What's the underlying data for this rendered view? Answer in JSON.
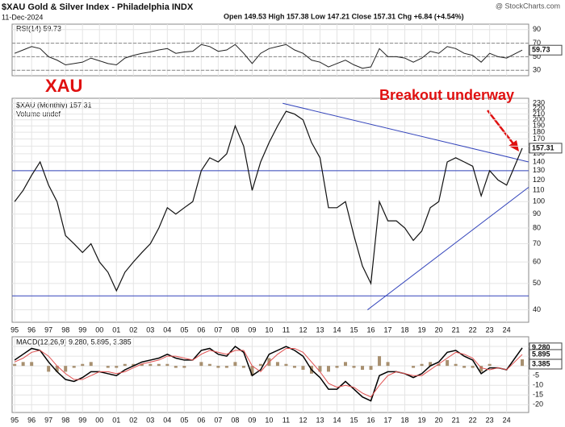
{
  "chart_data": {
    "type": "stock-panels",
    "title": "$XAU Gold & Silver Index - Philadelphia INDX",
    "date": "11-Dec-2024",
    "quote": "Open 149.53 High 157.38 Low 147.21 Close 157.31 Chg +6.84 (+4.54%)",
    "source": "@ StockCharts.com",
    "symbol_badge": "XAU",
    "annotation": "Breakout underway",
    "xlim": [
      1994.85,
      2025.3
    ],
    "xticks": [
      {
        "value": 1995,
        "label": "95"
      },
      {
        "value": 1996,
        "label": "96"
      },
      {
        "value": 1997,
        "label": "97"
      },
      {
        "value": 1998,
        "label": "98"
      },
      {
        "value": 1999,
        "label": "99"
      },
      {
        "value": 2000,
        "label": "00"
      },
      {
        "value": 2001,
        "label": "01"
      },
      {
        "value": 2002,
        "label": "02"
      },
      {
        "value": 2003,
        "label": "03"
      },
      {
        "value": 2004,
        "label": "04"
      },
      {
        "value": 2005,
        "label": "05"
      },
      {
        "value": 2006,
        "label": "06"
      },
      {
        "value": 2007,
        "label": "07"
      },
      {
        "value": 2008,
        "label": "08"
      },
      {
        "value": 2009,
        "label": "09"
      },
      {
        "value": 2010,
        "label": "10"
      },
      {
        "value": 2011,
        "label": "11"
      },
      {
        "value": 2012,
        "label": "12"
      },
      {
        "value": 2013,
        "label": "13"
      },
      {
        "value": 2014,
        "label": "14"
      },
      {
        "value": 2015,
        "label": "15"
      },
      {
        "value": 2016,
        "label": "16"
      },
      {
        "value": 2017,
        "label": "17"
      },
      {
        "value": 2018,
        "label": "18"
      },
      {
        "value": 2019,
        "label": "19"
      },
      {
        "value": 2020,
        "label": "20"
      },
      {
        "value": 2021,
        "label": "21"
      },
      {
        "value": 2022,
        "label": "22"
      },
      {
        "value": 2023,
        "label": "23"
      },
      {
        "value": 2024,
        "label": "24"
      }
    ],
    "x": [
      1995,
      1995.5,
      1996,
      1996.5,
      1997,
      1997.5,
      1998,
      1998.5,
      1999,
      1999.5,
      2000,
      2000.5,
      2001,
      2001.5,
      2002,
      2002.5,
      2003,
      2003.5,
      2004,
      2004.5,
      2005,
      2005.5,
      2006,
      2006.5,
      2007,
      2007.5,
      2008,
      2008.5,
      2009,
      2009.5,
      2010,
      2010.5,
      2011,
      2011.5,
      2012,
      2012.5,
      2013,
      2013.5,
      2014,
      2014.5,
      2015,
      2015.5,
      2016,
      2016.5,
      2017,
      2017.5,
      2018,
      2018.5,
      2019,
      2019.5,
      2020,
      2020.5,
      2021,
      2021.5,
      2022,
      2022.5,
      2023,
      2023.5,
      2024,
      2024.92
    ],
    "rsi": {
      "legend": "RSI(14) 59.73",
      "tag": "59.73",
      "color": "#222222",
      "ylim": [
        22,
        98
      ],
      "yticks": [
        30,
        50,
        70,
        90
      ],
      "levels": [
        30,
        50,
        70
      ],
      "values": [
        55,
        60,
        65,
        62,
        50,
        45,
        38,
        40,
        42,
        48,
        44,
        40,
        38,
        48,
        52,
        55,
        57,
        60,
        62,
        55,
        57,
        58,
        68,
        65,
        58,
        60,
        68,
        55,
        40,
        55,
        62,
        65,
        68,
        60,
        55,
        45,
        42,
        35,
        40,
        45,
        38,
        33,
        35,
        62,
        50,
        50,
        48,
        42,
        48,
        58,
        55,
        65,
        62,
        55,
        52,
        42,
        55,
        50,
        48,
        59.73
      ]
    },
    "price": {
      "legend": "$XAU (Monthly) 157.31",
      "volume": "Volume undef",
      "tag": "157.31",
      "color": "#111111",
      "log": true,
      "ylim": [
        36,
        240
      ],
      "yticks": [
        40,
        50,
        60,
        70,
        80,
        90,
        100,
        110,
        120,
        130,
        140,
        150,
        160,
        170,
        180,
        190,
        200,
        210,
        220,
        230
      ],
      "values": [
        100,
        110,
        125,
        140,
        115,
        100,
        75,
        70,
        65,
        70,
        60,
        55,
        47,
        55,
        60,
        65,
        70,
        80,
        95,
        90,
        95,
        100,
        130,
        145,
        140,
        150,
        190,
        160,
        110,
        140,
        165,
        190,
        215,
        210,
        200,
        165,
        145,
        95,
        95,
        100,
        75,
        58,
        50,
        100,
        85,
        85,
        80,
        72,
        78,
        95,
        100,
        140,
        145,
        140,
        135,
        105,
        130,
        120,
        115,
        157.31
      ],
      "lines": [
        {
          "color": "#3344bb",
          "points": [
            [
              2010.8,
              230
            ],
            [
              2025.3,
              140
            ]
          ]
        },
        {
          "color": "#3344bb",
          "points": [
            [
              2015.8,
              40
            ],
            [
              2025.3,
              113
            ]
          ]
        },
        {
          "color": "#3344bb",
          "points": [
            [
              1994.85,
              130
            ],
            [
              2025.3,
              130
            ]
          ]
        },
        {
          "color": "#3344bb",
          "points": [
            [
              1994.85,
              45
            ],
            [
              2025.3,
              45
            ]
          ]
        }
      ]
    },
    "macd": {
      "legend": "MACD(12,26,9) 9.280, 5.895, 3.385",
      "tags": [
        "9.280",
        "5.895",
        "3.385"
      ],
      "ylim": [
        -24,
        15
      ],
      "yticks": [
        -20,
        -15,
        -10,
        -5,
        0,
        5,
        10
      ],
      "series": [
        {
          "name": "MACD",
          "color": "#000000",
          "values": [
            3,
            6,
            9,
            8,
            2,
            -3,
            -7,
            -8,
            -6,
            -3,
            -3,
            -4,
            -5,
            -2,
            0,
            2,
            3,
            4,
            6,
            4,
            3,
            3,
            8,
            9,
            6,
            5,
            10,
            7,
            -5,
            -2,
            6,
            8,
            10,
            8,
            5,
            -2,
            -6,
            -12,
            -12,
            -8,
            -12,
            -16,
            -18,
            -5,
            -3,
            -3,
            -4,
            -6,
            -4,
            0,
            2,
            7,
            8,
            5,
            3,
            -4,
            -1,
            -1,
            -2,
            9.28
          ]
        },
        {
          "name": "Signal",
          "color": "#e05050",
          "values": [
            2,
            4,
            7,
            8,
            5,
            0,
            -4,
            -7,
            -7,
            -5,
            -3,
            -3,
            -4,
            -3,
            -1,
            1,
            2,
            3,
            5,
            5,
            4,
            3,
            6,
            8,
            7,
            6,
            8,
            8,
            0,
            -3,
            2,
            6,
            9,
            9,
            7,
            2,
            -3,
            -9,
            -11,
            -10,
            -11,
            -14,
            -16,
            -10,
            -5,
            -3,
            -4,
            -5,
            -5,
            -2,
            1,
            4,
            7,
            6,
            4,
            -1,
            -2,
            -1,
            -2,
            5.895
          ]
        },
        {
          "name": "Histogram",
          "color": "#a89070",
          "values": [
            1,
            2,
            2,
            0,
            -3,
            -3,
            -3,
            -1,
            1,
            2,
            0,
            -1,
            -1,
            1,
            1,
            1,
            1,
            1,
            1,
            -1,
            -1,
            0,
            2,
            1,
            -1,
            -1,
            2,
            -1,
            -5,
            1,
            4,
            2,
            1,
            -1,
            -2,
            -4,
            -3,
            -3,
            -1,
            2,
            -1,
            -2,
            -2,
            5,
            2,
            0,
            0,
            -1,
            1,
            2,
            1,
            3,
            1,
            -1,
            -1,
            -3,
            1,
            0,
            0,
            3.385
          ]
        }
      ]
    }
  }
}
